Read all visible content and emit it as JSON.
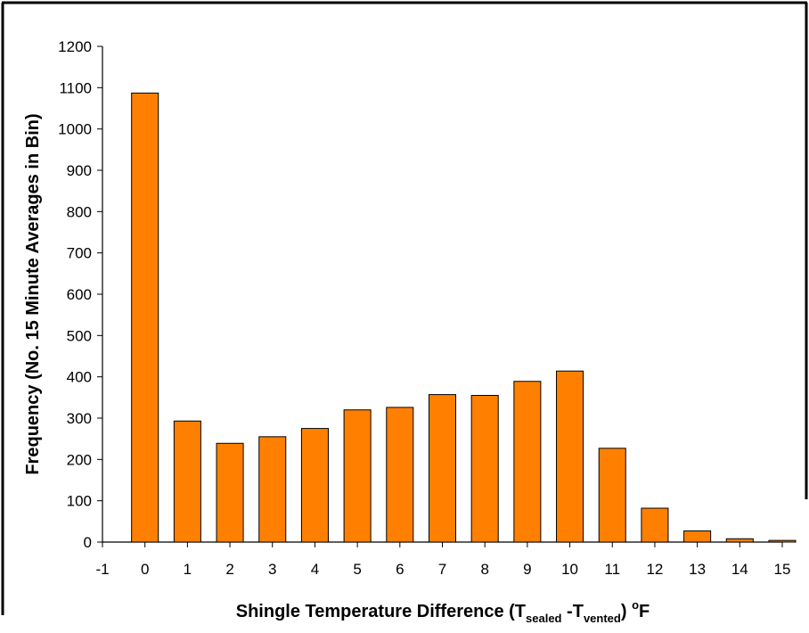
{
  "chart_data": {
    "type": "bar",
    "x_ticks": [
      "-1",
      "0",
      "1",
      "2",
      "3",
      "4",
      "5",
      "6",
      "7",
      "8",
      "9",
      "10",
      "11",
      "12",
      "13",
      "14",
      "15"
    ],
    "xlim": [
      -1,
      15
    ],
    "categories": [
      0,
      1,
      2,
      3,
      4,
      5,
      6,
      7,
      8,
      9,
      10,
      11,
      12,
      13,
      14,
      15
    ],
    "values": [
      1087,
      293,
      239,
      255,
      275,
      320,
      326,
      357,
      355,
      389,
      414,
      227,
      82,
      27,
      8,
      4
    ],
    "y_ticks": [
      "0",
      "100",
      "200",
      "300",
      "400",
      "500",
      "600",
      "700",
      "800",
      "900",
      "1000",
      "1100",
      "1200"
    ],
    "ylim": [
      0,
      1200
    ],
    "ylabel": "Frequency (No. 15 Minute Averages in Bin)",
    "xlabel_parts": {
      "prefix": "Shingle Temperature Difference (T",
      "sub1": "sealed",
      "middle": " -T",
      "sub2": "vented",
      "close": ") ",
      "sup": "o",
      "unit": "F"
    },
    "bar_color": "#ff8000",
    "bar_edge_color": "#000000",
    "grid": false,
    "legend": "none",
    "bar_width_fraction": 0.63
  }
}
